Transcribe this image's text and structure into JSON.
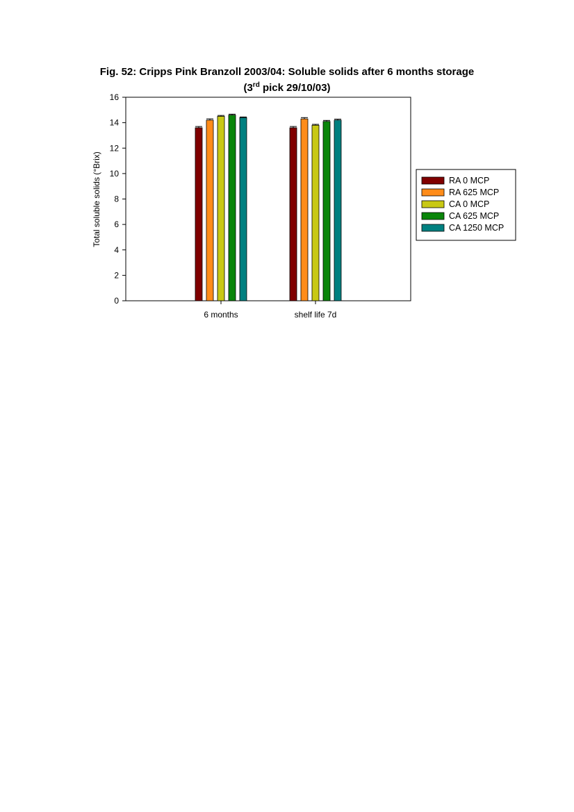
{
  "figure": {
    "title_line1": "Fig. 52: Cripps Pink Branzoll 2003/04: Soluble solids  after 6 months storage",
    "title_line2_prefix": "(3",
    "title_line2_sup": "rd",
    "title_line2_suffix": " pick 29/10/03)"
  },
  "chart_data": {
    "type": "bar",
    "title": "Fig. 52: Cripps Pink Branzoll 2003/04: Soluble solids  after 6 months storage (3rd pick 29/10/03)",
    "xlabel": "",
    "ylabel": "Total soluble solids (°Brix)",
    "ylim": [
      0,
      16
    ],
    "yticks": [
      0,
      2,
      4,
      6,
      8,
      10,
      12,
      14,
      16
    ],
    "categories": [
      "6 months",
      "shelf life 7d"
    ],
    "series": [
      {
        "name": "RA 0 MCP",
        "color": "#800000",
        "values": [
          13.6,
          13.6
        ],
        "errors": [
          0.1,
          0.1
        ]
      },
      {
        "name": "RA 625 MCP",
        "color": "#ff8c1a",
        "values": [
          14.2,
          14.3
        ],
        "errors": [
          0.1,
          0.1
        ]
      },
      {
        "name": "CA 0 MCP",
        "color": "#c8c814",
        "values": [
          14.5,
          13.8
        ],
        "errors": [
          0.07,
          0.07
        ]
      },
      {
        "name": "CA 625 MCP",
        "color": "#0a850a",
        "values": [
          14.6,
          14.1
        ],
        "errors": [
          0.07,
          0.08
        ]
      },
      {
        "name": "CA 1250 MCP",
        "color": "#008080",
        "values": [
          14.4,
          14.2
        ],
        "errors": [
          0.05,
          0.08
        ]
      }
    ],
    "grid": false,
    "legend_position": "right"
  }
}
